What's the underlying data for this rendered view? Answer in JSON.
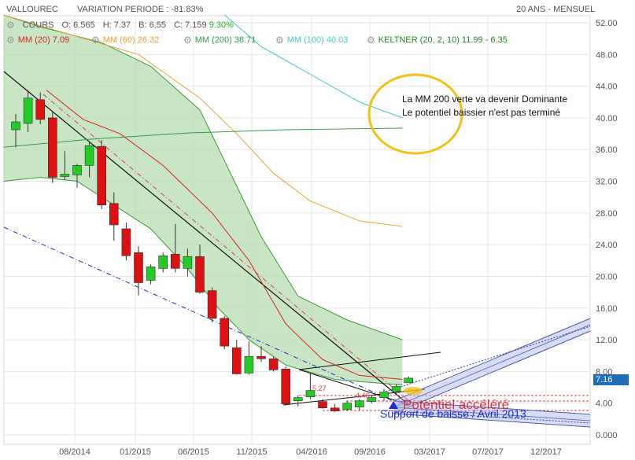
{
  "header": {
    "title": "VALLOUREC",
    "variation": "VARIATION PERIODE : -81.83%",
    "period": "20 ANS - MENSUEL"
  },
  "legend": {
    "cours": "COURS",
    "open": "O: 6.565",
    "high": "H: 7.37",
    "low": "B: 6.55",
    "close": "C: 7.159",
    "change": "9.30%",
    "mm20": "MM (20) 7.09",
    "mm60": "MM (60) 26.32",
    "mm200": "MM (200) 38.71",
    "mm100": "MM (100) 40.03",
    "keltner": "KELTNER (20, 2, 10) 11.99 - 6.35"
  },
  "annotation": {
    "line1": "La MM 200 verte va devenir Dominante",
    "line2": "Le potentiel baissier n'est pas terminé"
  },
  "chart_labels": {
    "potentiel": "Potentiel accéléré",
    "support": "Support de baisse / Avril 2013",
    "level1": "5.27",
    "level2": "4.46"
  },
  "colors": {
    "up": "#22cc22",
    "down": "#dd1111",
    "mm20": "#dd2222",
    "mm60": "#f0a030",
    "mm100": "#40c8d0",
    "mm200": "#2e9e4e",
    "keltner_fill": "#b6dcb0",
    "circle": "#f2c016",
    "price_badge": "#1e6fb8"
  },
  "chart_data": {
    "type": "candlestick",
    "x_ticks": [
      "08/2014",
      "01/2015",
      "06/2015",
      "11/2015",
      "04/2016",
      "09/2016",
      "03/2017",
      "07/2017",
      "12/2017"
    ],
    "y_ticks": [
      "52.00",
      "48.00",
      "44.00",
      "40.00",
      "36.00",
      "32.00",
      "28.00",
      "24.00",
      "20.00",
      "16.00",
      "12.00",
      "8.00",
      "4.00",
      "0.000"
    ],
    "ylim": [
      -1,
      53
    ],
    "last_price": "7.16",
    "candles": [
      {
        "o": 38.5,
        "h": 40.5,
        "l": 36.3,
        "c": 39.5
      },
      {
        "o": 39.3,
        "h": 43.5,
        "l": 38.2,
        "c": 42.5
      },
      {
        "o": 42.3,
        "h": 43.2,
        "l": 39.2,
        "c": 39.8
      },
      {
        "o": 40.0,
        "h": 40.8,
        "l": 31.8,
        "c": 32.5
      },
      {
        "o": 32.6,
        "h": 35.8,
        "l": 32.2,
        "c": 32.9
      },
      {
        "o": 32.8,
        "h": 34.2,
        "l": 31.2,
        "c": 34.0
      },
      {
        "o": 34.0,
        "h": 37.0,
        "l": 32.5,
        "c": 36.5
      },
      {
        "o": 36.4,
        "h": 37.2,
        "l": 28.5,
        "c": 29.0
      },
      {
        "o": 29.2,
        "h": 30.6,
        "l": 24.5,
        "c": 26.5
      },
      {
        "o": 26.0,
        "h": 26.8,
        "l": 22.0,
        "c": 22.6
      },
      {
        "o": 23.0,
        "h": 23.8,
        "l": 17.6,
        "c": 19.2
      },
      {
        "o": 19.5,
        "h": 21.5,
        "l": 19.0,
        "c": 21.2
      },
      {
        "o": 21.0,
        "h": 23.0,
        "l": 20.5,
        "c": 22.6
      },
      {
        "o": 22.8,
        "h": 26.6,
        "l": 20.5,
        "c": 21.0
      },
      {
        "o": 21.0,
        "h": 23.5,
        "l": 20.0,
        "c": 22.5
      },
      {
        "o": 22.5,
        "h": 24.0,
        "l": 17.8,
        "c": 18.0
      },
      {
        "o": 18.2,
        "h": 18.6,
        "l": 14.2,
        "c": 14.7
      },
      {
        "o": 14.7,
        "h": 15.0,
        "l": 10.8,
        "c": 11.2
      },
      {
        "o": 11.0,
        "h": 12.0,
        "l": 7.6,
        "c": 7.7
      },
      {
        "o": 7.8,
        "h": 11.8,
        "l": 7.6,
        "c": 9.9
      },
      {
        "o": 9.9,
        "h": 11.2,
        "l": 9.2,
        "c": 9.6
      },
      {
        "o": 9.6,
        "h": 9.8,
        "l": 8.0,
        "c": 8.2
      },
      {
        "o": 8.3,
        "h": 8.6,
        "l": 3.7,
        "c": 3.9
      },
      {
        "o": 4.3,
        "h": 5.0,
        "l": 3.6,
        "c": 4.7
      },
      {
        "o": 4.8,
        "h": 7.8,
        "l": 4.5,
        "c": 5.6
      },
      {
        "o": 4.2,
        "h": 4.5,
        "l": 3.3,
        "c": 3.4
      },
      {
        "o": 3.4,
        "h": 3.9,
        "l": 2.9,
        "c": 3.0
      },
      {
        "o": 3.2,
        "h": 4.3,
        "l": 3.0,
        "c": 4.0
      },
      {
        "o": 3.5,
        "h": 4.5,
        "l": 3.1,
        "c": 4.3
      },
      {
        "o": 4.2,
        "h": 5.0,
        "l": 4.0,
        "c": 4.7
      },
      {
        "o": 4.7,
        "h": 5.8,
        "l": 4.3,
        "c": 5.4
      },
      {
        "o": 5.5,
        "h": 6.4,
        "l": 5.2,
        "c": 6.1
      },
      {
        "o": 6.565,
        "h": 7.37,
        "l": 6.55,
        "c": 7.159
      }
    ],
    "mm20": [
      [
        2.5,
        43.5
      ],
      [
        5.5,
        39.8
      ],
      [
        8.5,
        38.0
      ],
      [
        12,
        34.0
      ],
      [
        16,
        28.0
      ],
      [
        19,
        22.0
      ],
      [
        22,
        14.0
      ],
      [
        25,
        9.5
      ],
      [
        28,
        7.5
      ],
      [
        31.5,
        7.0
      ]
    ],
    "mm60": [
      [
        -1,
        53.0
      ],
      [
        10,
        48.0
      ],
      [
        15,
        42.5
      ],
      [
        18,
        38.0
      ],
      [
        21,
        33.0
      ],
      [
        24,
        29.5
      ],
      [
        28,
        27.0
      ],
      [
        31.5,
        26.3
      ]
    ],
    "mm100": [
      [
        17,
        53.0
      ],
      [
        20,
        49.0
      ],
      [
        24,
        45.5
      ],
      [
        28,
        42.0
      ],
      [
        31.5,
        40.0
      ]
    ],
    "mm200": [
      [
        -1,
        36.3
      ],
      [
        6,
        37.3
      ],
      [
        14,
        38.1
      ],
      [
        22,
        38.5
      ],
      [
        31.5,
        38.7
      ]
    ],
    "keltner_upper": [
      [
        -1,
        53.0
      ],
      [
        2,
        51.5
      ],
      [
        7,
        49.5
      ],
      [
        11,
        46.5
      ],
      [
        15,
        41.0
      ],
      [
        17.5,
        33.0
      ],
      [
        20,
        25.0
      ],
      [
        23,
        17.5
      ],
      [
        27,
        14.5
      ],
      [
        31.5,
        12.0
      ]
    ],
    "keltner_lower": [
      [
        31.5,
        6.3
      ],
      [
        29,
        6.6
      ],
      [
        26,
        7.0
      ],
      [
        22,
        8.8
      ],
      [
        19,
        12.0
      ],
      [
        16.5,
        16.0
      ],
      [
        14,
        21.0
      ],
      [
        11,
        26.0
      ],
      [
        8,
        29.0
      ],
      [
        5,
        32.0
      ],
      [
        2,
        32.5
      ],
      [
        -1,
        32.0
      ]
    ]
  }
}
